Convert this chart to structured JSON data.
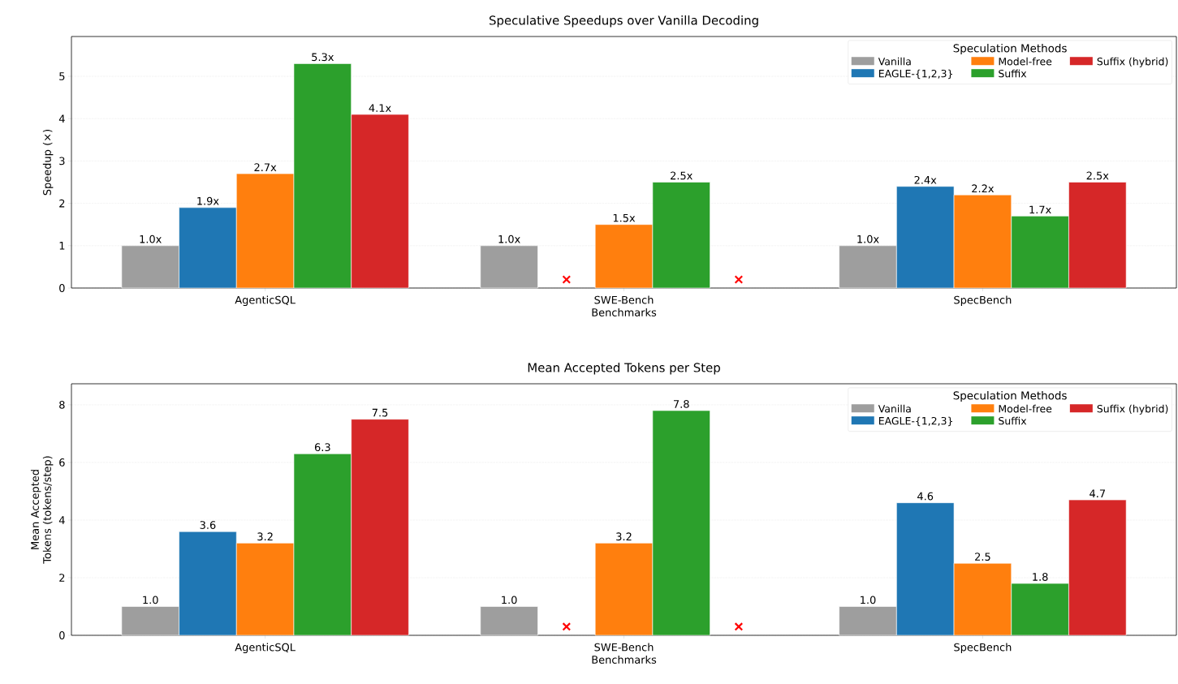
{
  "chart_data": [
    {
      "type": "bar",
      "title": "Speculative Speedups over Vanilla Decoding",
      "xlabel": "Benchmarks",
      "ylabel": "Speedup (×)",
      "legend_title": "Speculation Methods",
      "legend": "top right",
      "grid": "y",
      "categories": [
        "AgenticSQL",
        "SWE-Bench",
        "SpecBench"
      ],
      "ylim": [
        0,
        5.94
      ],
      "yticks": [
        0,
        1,
        2,
        3,
        4,
        5
      ],
      "series": [
        {
          "name": "Vanilla",
          "color": "#9e9e9e",
          "values": [
            1.0,
            1.0,
            1.0
          ],
          "value_labels": [
            "1.0x",
            "1.0x",
            "1.0x"
          ]
        },
        {
          "name": "EAGLE-{1,2,3}",
          "color": "#1f77b4",
          "values": [
            1.9,
            null,
            2.4
          ],
          "value_labels": [
            "1.9x",
            null,
            "2.4x"
          ]
        },
        {
          "name": "Model-free",
          "color": "#ff7f0e",
          "values": [
            2.7,
            1.5,
            2.2
          ],
          "value_labels": [
            "2.7x",
            "1.5x",
            "2.2x"
          ]
        },
        {
          "name": "Suffix",
          "color": "#2ca02c",
          "values": [
            5.3,
            2.5,
            1.7
          ],
          "value_labels": [
            "5.3x",
            "2.5x",
            "1.7x"
          ]
        },
        {
          "name": "Suffix (hybrid)",
          "color": "#d62728",
          "values": [
            4.1,
            null,
            2.5
          ],
          "value_labels": [
            "4.1x",
            null,
            "2.5x"
          ]
        },
        {
          "type": "scatter",
          "marker": "cross",
          "color": "#ff0000",
          "x": [
            "SWE-Bench",
            "SWE-Bench"
          ],
          "values": [
            0.2,
            0.2
          ]
        }
      ]
    },
    {
      "type": "bar",
      "title": "Mean Accepted Tokens per Step",
      "xlabel": "Benchmarks",
      "ylabel": "Mean Accepted Tokens (tokens/step)",
      "legend_title": "Speculation Methods",
      "legend": "top right",
      "grid": "y",
      "categories": [
        "AgenticSQL",
        "SWE-Bench",
        "SpecBench"
      ],
      "ylim": [
        0,
        8.73
      ],
      "yticks": [
        0,
        2,
        4,
        6,
        8
      ],
      "series": [
        {
          "name": "Vanilla",
          "color": "#9e9e9e",
          "values": [
            1.0,
            1.0,
            1.0
          ],
          "value_labels": [
            "1.0",
            "1.0",
            "1.0"
          ]
        },
        {
          "name": "EAGLE-{1,2,3}",
          "color": "#1f77b4",
          "values": [
            3.6,
            null,
            4.6
          ],
          "value_labels": [
            "3.6",
            null,
            "4.6"
          ]
        },
        {
          "name": "Model-free",
          "color": "#ff7f0e",
          "values": [
            3.2,
            3.2,
            2.5
          ],
          "value_labels": [
            "3.2",
            "3.2",
            "2.5"
          ]
        },
        {
          "name": "Suffix",
          "color": "#2ca02c",
          "values": [
            6.3,
            7.8,
            1.8
          ],
          "value_labels": [
            "6.3",
            "7.8",
            "1.8"
          ]
        },
        {
          "name": "Suffix (hybrid)",
          "color": "#d62728",
          "values": [
            7.5,
            null,
            4.7
          ],
          "value_labels": [
            "7.5",
            null,
            "4.7"
          ]
        },
        {
          "type": "scatter",
          "marker": "cross",
          "color": "#ff0000",
          "x": [
            "SWE-Bench",
            "SWE-Bench"
          ],
          "values": [
            0.3,
            0.3
          ]
        }
      ]
    }
  ]
}
